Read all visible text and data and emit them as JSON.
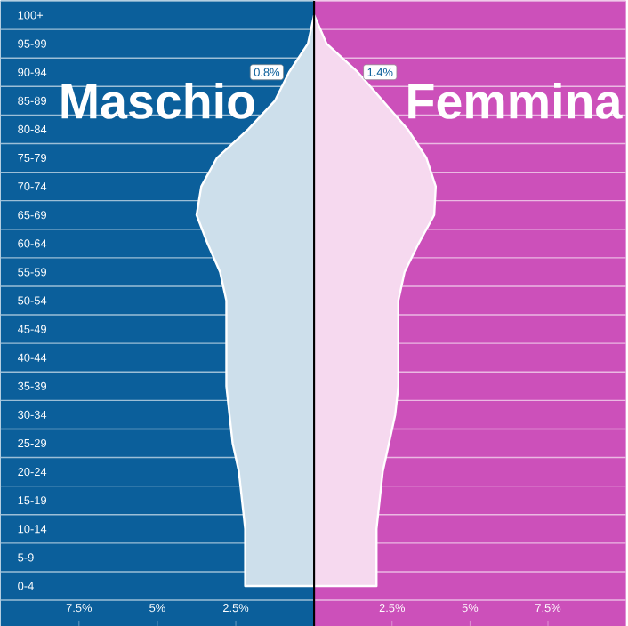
{
  "chart_data": [
    {
      "type": "area",
      "orientation": "horizontal",
      "title": "Maschio",
      "grid": "y",
      "categories": [
        "100+",
        "95-99",
        "90-94",
        "85-89",
        "80-84",
        "75-79",
        "70-74",
        "65-69",
        "60-64",
        "55-59",
        "50-54",
        "45-49",
        "40-44",
        "35-39",
        "30-34",
        "25-29",
        "20-24",
        "15-19",
        "10-14",
        "5-9",
        "0-4"
      ],
      "series": [
        {
          "color": "#cddfeb",
          "values": [
            0,
            0.2,
            0.8,
            1.25,
            2.1,
            3.1,
            3.6,
            3.75,
            3.4,
            3.0,
            2.8,
            2.8,
            2.8,
            2.8,
            2.7,
            2.6,
            2.4,
            2.3,
            2.2,
            2.2,
            2.2
          ]
        }
      ],
      "xlim": [
        10,
        0
      ],
      "xticks": [
        {
          "value": 7.5,
          "label": "7.5%"
        },
        {
          "value": 5,
          "label": "5%"
        },
        {
          "value": 2.5,
          "label": "2.5%"
        }
      ],
      "annotations": [
        {
          "text": "0.8%",
          "x": 0.8,
          "y": "90-94"
        }
      ]
    },
    {
      "type": "area",
      "orientation": "horizontal",
      "title": "Femmina",
      "grid": "y",
      "tick_labels": "x",
      "categories": [
        "100+",
        "95-99",
        "90-94",
        "85-89",
        "80-84",
        "75-79",
        "70-74",
        "65-69",
        "60-64",
        "55-59",
        "50-54",
        "45-49",
        "40-44",
        "35-39",
        "30-34",
        "25-29",
        "20-24",
        "15-19",
        "10-14",
        "5-9",
        "0-4"
      ],
      "series": [
        {
          "color": "#f6d9ef",
          "values": [
            0,
            0.4,
            1.4,
            2.2,
            3.0,
            3.6,
            3.9,
            3.85,
            3.35,
            2.9,
            2.7,
            2.7,
            2.7,
            2.7,
            2.6,
            2.4,
            2.2,
            2.1,
            2.0,
            2.0,
            2.0
          ]
        }
      ],
      "xlim": [
        0,
        10
      ],
      "xticks": [
        {
          "value": 2.5,
          "label": "2.5%"
        },
        {
          "value": 5,
          "label": "5%"
        },
        {
          "value": 7.5,
          "label": "7.5%"
        }
      ],
      "annotations": [
        {
          "text": "1.4%",
          "x": 1.4,
          "y": "90-94"
        }
      ]
    }
  ]
}
